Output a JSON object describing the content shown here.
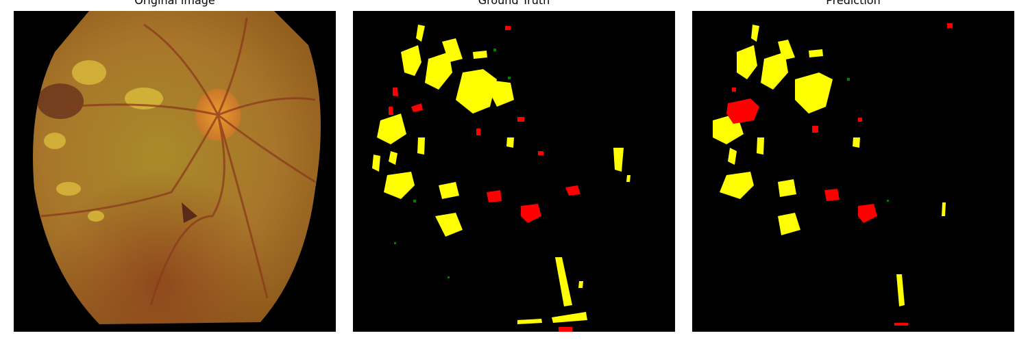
{
  "titles": {
    "original": "Original image",
    "ground_truth": "Ground Truth",
    "prediction": "Prediction"
  },
  "colors": {
    "background": "#000000",
    "exudates": "#ffff00",
    "hemorrhages": "#ff0000",
    "microaneurysms": "#008000",
    "fundus": "#b07a1e"
  }
}
